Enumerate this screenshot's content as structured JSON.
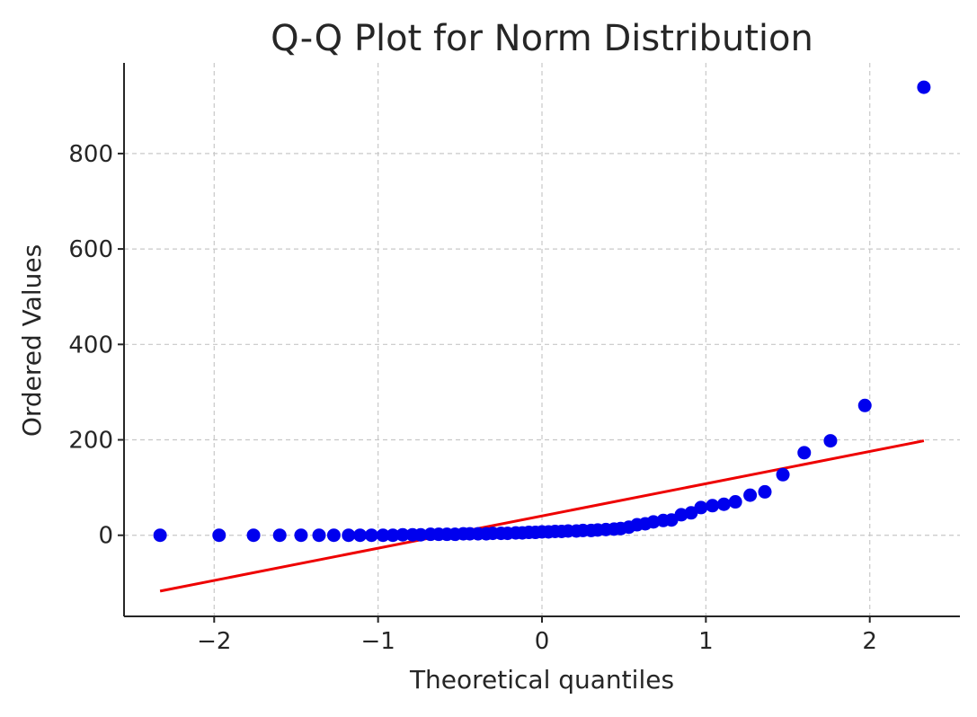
{
  "chart_data": {
    "type": "scatter",
    "title": "Q-Q Plot for Norm Distribution",
    "xlabel": "Theoretical quantiles",
    "ylabel": "Ordered Values",
    "xlim": [
      -2.55,
      2.55
    ],
    "ylim": [
      -170,
      990
    ],
    "x_ticks": [
      -2,
      -1,
      0,
      1,
      2
    ],
    "x_tick_labels": [
      "−2",
      "−1",
      "0",
      "1",
      "2"
    ],
    "y_ticks": [
      0,
      200,
      400,
      600,
      800
    ],
    "y_tick_labels": [
      "0",
      "200",
      "400",
      "600",
      "800"
    ],
    "grid": true,
    "grid_style": "dashed",
    "colors": {
      "points": "#0000ee",
      "fit_line": "#ee0000",
      "grid": "#c8c8c8",
      "axis": "#262626"
    },
    "series": [
      {
        "kind": "points",
        "x": [
          -2.33,
          -1.97,
          -1.76,
          -1.6,
          -1.47,
          -1.36,
          -1.27,
          -1.18,
          -1.11,
          -1.04,
          -0.97,
          -0.91,
          -0.85,
          -0.79,
          -0.74,
          -0.68,
          -0.63,
          -0.58,
          -0.53,
          -0.48,
          -0.44,
          -0.39,
          -0.34,
          -0.3,
          -0.25,
          -0.21,
          -0.16,
          -0.12,
          -0.08,
          -0.04,
          0.0,
          0.04,
          0.08,
          0.12,
          0.16,
          0.21,
          0.25,
          0.3,
          0.34,
          0.39,
          0.44,
          0.48,
          0.53,
          0.58,
          0.63,
          0.68,
          0.74,
          0.79,
          0.85,
          0.91,
          0.97,
          1.04,
          1.11,
          1.18,
          1.27,
          1.36,
          1.47,
          1.6,
          1.76,
          1.97,
          2.33
        ],
        "y": [
          0,
          0,
          0,
          0,
          0,
          0,
          0,
          0,
          0,
          0,
          0,
          0,
          1,
          1,
          1,
          2,
          2,
          2,
          2,
          3,
          3,
          3,
          3,
          4,
          4,
          4,
          5,
          5,
          6,
          6,
          7,
          7,
          8,
          8,
          9,
          9,
          10,
          10,
          11,
          12,
          13,
          14,
          17,
          22,
          24,
          28,
          31,
          32,
          43,
          47,
          58,
          62,
          65,
          70,
          84,
          91,
          127,
          173,
          198,
          272,
          939
        ]
      },
      {
        "kind": "fit-line",
        "x": [
          -2.33,
          2.33
        ],
        "y": [
          -117,
          198
        ]
      }
    ]
  }
}
